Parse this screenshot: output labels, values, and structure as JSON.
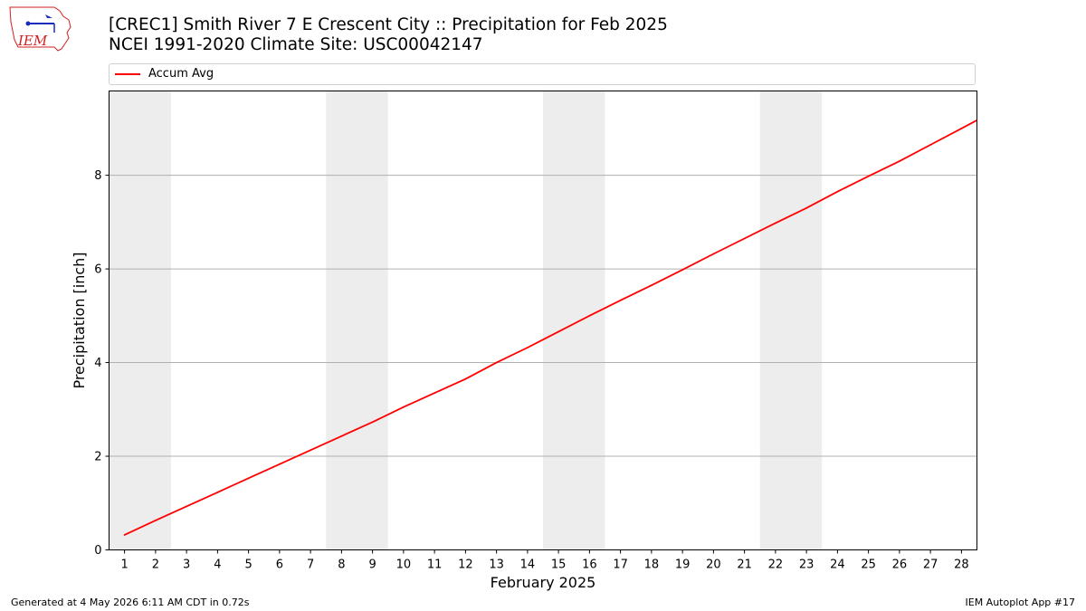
{
  "header": {
    "title_line1": "[CREC1] Smith River 7 E Crescent City :: Precipitation for Feb 2025",
    "title_line2": "NCEI 1991-2020 Climate Site: USC00042147"
  },
  "logo": {
    "text": "IEM"
  },
  "footer": {
    "generated": "Generated at 4 May 2026 6:11 AM CDT in 0.72s",
    "app": "IEM Autoplot App #17"
  },
  "colors": {
    "series": "#ff0000",
    "weekend_band": "#ededed",
    "grid": "#b0b0b0"
  },
  "chart_data": {
    "type": "line",
    "title": "[CREC1] Smith River 7 E Crescent City :: Precipitation for Feb 2025",
    "subtitle": "NCEI 1991-2020 Climate Site: USC00042147",
    "xlabel": "February 2025",
    "ylabel": "Precipitation [inch]",
    "x": [
      1,
      2,
      3,
      4,
      5,
      6,
      7,
      8,
      9,
      10,
      11,
      12,
      13,
      14,
      15,
      16,
      17,
      18,
      19,
      20,
      21,
      22,
      23,
      24,
      25,
      26,
      27,
      28
    ],
    "xlim": [
      0.5,
      28.5
    ],
    "ylim": [
      0,
      9.8
    ],
    "yticks": [
      0,
      2,
      4,
      6,
      8
    ],
    "grid": "y",
    "legend_position": "top",
    "weekend_bands": [
      [
        0.5,
        2.5
      ],
      [
        7.5,
        9.5
      ],
      [
        14.5,
        16.5
      ],
      [
        21.5,
        23.5
      ]
    ],
    "series": [
      {
        "name": "Accum Avg",
        "color": "#ff0000",
        "values": [
          0.32,
          0.63,
          0.93,
          1.23,
          1.53,
          1.83,
          2.13,
          2.43,
          2.73,
          3.05,
          3.35,
          3.65,
          4.0,
          4.32,
          4.66,
          5.0,
          5.33,
          5.65,
          5.98,
          6.32,
          6.65,
          6.98,
          7.3,
          7.65,
          7.98,
          8.3,
          8.65,
          9.0
        ]
      }
    ]
  }
}
